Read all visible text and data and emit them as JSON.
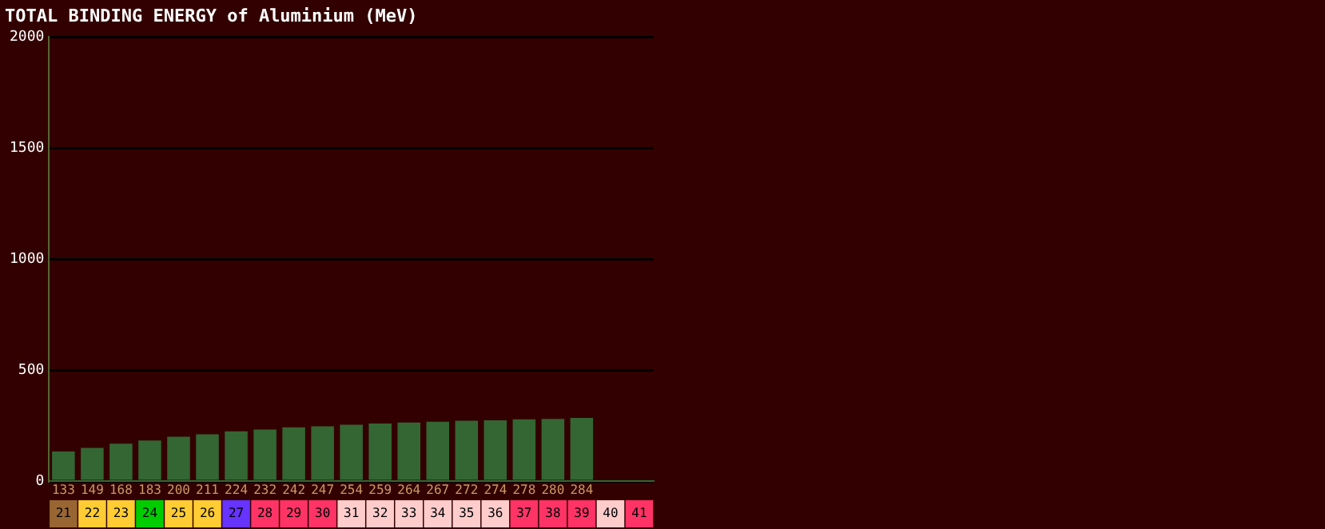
{
  "chart_data": {
    "type": "bar",
    "title": "TOTAL BINDING ENERGY of Aluminium (MeV)",
    "categories": [
      "21",
      "22",
      "23",
      "24",
      "25",
      "26",
      "27",
      "28",
      "29",
      "30",
      "31",
      "32",
      "33",
      "34",
      "35",
      "36",
      "37",
      "38",
      "39",
      "40",
      "41"
    ],
    "values": [
      133,
      149,
      168,
      183,
      200,
      211,
      224,
      232,
      242,
      247,
      254,
      259,
      264,
      267,
      272,
      274,
      278,
      280,
      284,
      null,
      null
    ],
    "color": "#336633",
    "ylim": [
      0,
      2000
    ],
    "yticks": [
      0,
      500,
      1000,
      1500,
      2000
    ],
    "grid": "y",
    "data_labels": true,
    "legend": false
  }
}
